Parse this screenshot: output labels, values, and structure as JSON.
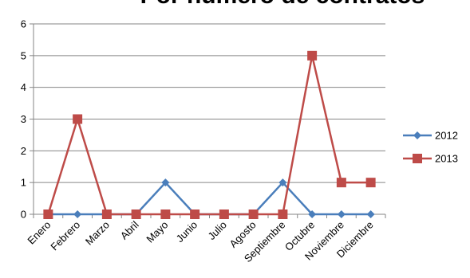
{
  "chart_data": {
    "type": "line",
    "title": "Por número de contratos",
    "categories": [
      "Enero",
      "Febrero",
      "Marzo",
      "Abril",
      "Mayo",
      "Junio",
      "Julio",
      "Agosto",
      "Septiembre",
      "Octubre",
      "Noviembre",
      "Diciembre"
    ],
    "series": [
      {
        "name": "2012",
        "color": "#4a7ebb",
        "marker": "diamond",
        "values": [
          0,
          0,
          0,
          0,
          1,
          0,
          0,
          0,
          1,
          0,
          0,
          0
        ]
      },
      {
        "name": "2013",
        "color": "#be4b48",
        "marker": "square",
        "values": [
          0,
          3,
          0,
          0,
          0,
          0,
          0,
          0,
          0,
          5,
          1,
          1
        ]
      }
    ],
    "yticks": [
      "0",
      "1",
      "2",
      "3",
      "4",
      "5",
      "6"
    ],
    "ylim": [
      0,
      6
    ],
    "grid": true,
    "legend": "right"
  }
}
